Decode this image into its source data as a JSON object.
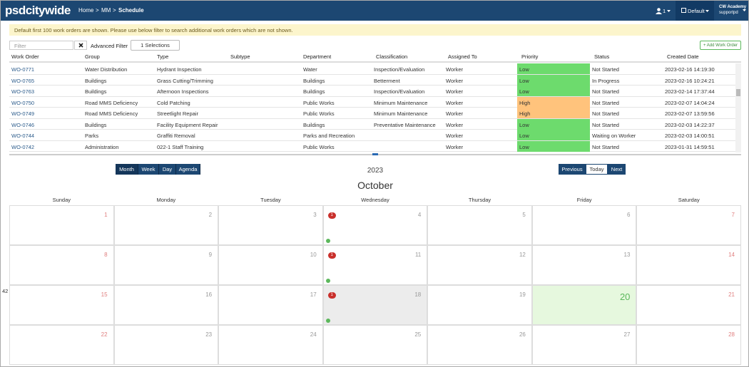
{
  "header": {
    "logo": "psdcitywide",
    "breadcrumb": [
      "Home",
      "MM",
      "Schedule"
    ],
    "user_count": "1",
    "profile": "Default",
    "account": [
      "CW Academy",
      "supportpd"
    ]
  },
  "notice": "Default first 100 work orders are shown. Please use below filter to search additional work orders which are not shown.",
  "toolbar": {
    "filter_placeholder": "Filter",
    "advanced_filter": "Advanced Filter",
    "selections": "1 Selections",
    "add": "+ Add Work Order"
  },
  "table": {
    "columns": [
      "Work Order",
      "Group",
      "Type",
      "Subtype",
      "Department",
      "Classification",
      "Assigned To",
      "Priority",
      "Status",
      "Created Date"
    ],
    "priority_colors": {
      "Low": "#6ddb6d",
      "High": "#ffc37c"
    },
    "rows": [
      [
        "WO-0771",
        "Water Distribution",
        "Hydrant Inspection",
        "",
        "Water",
        "Inspection/Evaluation",
        "Worker",
        "Low",
        "Not Started",
        "2023-02-16 14:19:30"
      ],
      [
        "WO-0765",
        "Buildings",
        "Grass Cutting/Trimming",
        "",
        "Buildings",
        "Betterment",
        "Worker",
        "Low",
        "In Progress",
        "2023-02-16 10:24:21"
      ],
      [
        "WO-0763",
        "Buildings",
        "Afternoon Inspections",
        "",
        "Buildings",
        "Inspection/Evaluation",
        "Worker",
        "Low",
        "Not Started",
        "2023-02-14 17:37:44"
      ],
      [
        "WO-0750",
        "Road MMS Deficiency",
        "Cold Patching",
        "",
        "Public Works",
        "Minimum Maintenance",
        "Worker",
        "High",
        "Not Started",
        "2023-02-07 14:04:24"
      ],
      [
        "WO-0749",
        "Road MMS Deficiency",
        "Streetlight Repair",
        "",
        "Public Works",
        "Minimum Maintenance",
        "Worker",
        "High",
        "Not Started",
        "2023-02-07 13:59:56"
      ],
      [
        "WO-0746",
        "Buildings",
        "Facility Equipment Repair",
        "",
        "Buildings",
        "Preventative Maintenance",
        "Worker",
        "Low",
        "Not Started",
        "2023-02-03 14:22:37"
      ],
      [
        "WO-0744",
        "Parks",
        "Graffiti Removal",
        "",
        "Parks and Recreation",
        "",
        "Worker",
        "Low",
        "Waiting on Worker",
        "2023-02-03 14:00:51"
      ],
      [
        "WO-0742",
        "Administration",
        "022-1 Staff Training",
        "",
        "Public Works",
        "",
        "Worker",
        "Low",
        "Not Started",
        "2023-01-31 14:59:51"
      ]
    ]
  },
  "calendar": {
    "views": [
      "Month",
      "Week",
      "Day",
      "Agenda"
    ],
    "year": "2023",
    "month": "October",
    "nav": [
      "Previous",
      "Today",
      "Next"
    ],
    "weekdays": [
      "Sunday",
      "Monday",
      "Tuesday",
      "Wednesday",
      "Thursday",
      "Friday",
      "Saturday"
    ],
    "week_number": "42",
    "weeks": [
      [
        {
          "day": 1
        },
        {
          "day": 2
        },
        {
          "day": 3
        },
        {
          "day": 4,
          "events": 1
        },
        {
          "day": 5
        },
        {
          "day": 6
        },
        {
          "day": 7
        }
      ],
      [
        {
          "day": 8
        },
        {
          "day": 9
        },
        {
          "day": 10
        },
        {
          "day": 11,
          "events": 1
        },
        {
          "day": 12
        },
        {
          "day": 13
        },
        {
          "day": 14
        }
      ],
      [
        {
          "day": 15
        },
        {
          "day": 16
        },
        {
          "day": 17
        },
        {
          "day": 18,
          "events": 1,
          "selected": true
        },
        {
          "day": 19
        },
        {
          "day": 20,
          "today": true
        },
        {
          "day": 21
        }
      ],
      [
        {
          "day": 22
        },
        {
          "day": 23
        },
        {
          "day": 24
        },
        {
          "day": 25
        },
        {
          "day": 26
        },
        {
          "day": 27
        },
        {
          "day": 28
        }
      ]
    ]
  }
}
